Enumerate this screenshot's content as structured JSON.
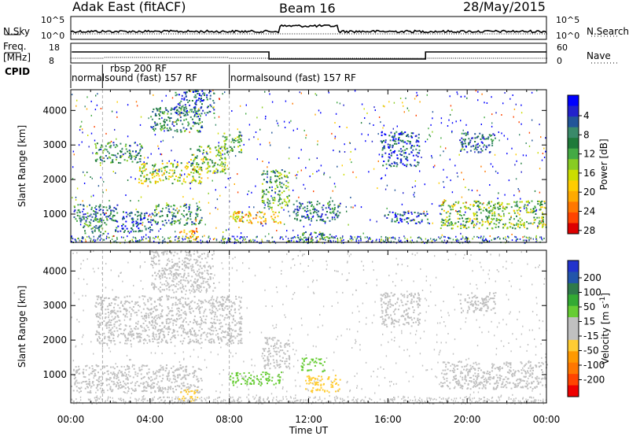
{
  "header": {
    "title": "Adak East (fitACF)",
    "beam": "Beam 16",
    "date": "28/May/2015"
  },
  "panels": {
    "nsky_label": "N.Sky",
    "nsearch_label": "N.Search",
    "freq_label": "Freq.",
    "freq_unit": "[MHz]",
    "nave_label": "Nave",
    "cpid_label": "CPID",
    "nsky_ticks": [
      "10^5",
      "10^0"
    ],
    "nsearch_ticks": [
      "10^5",
      "10^0"
    ],
    "freq_ticks": [
      "18",
      "8"
    ],
    "nave_ticks": [
      "60",
      "0"
    ]
  },
  "cpid_segments": [
    {
      "text": "normalsound (fast) 157 RF",
      "start_hour": 0.0,
      "end_hour": 8.0
    },
    {
      "text": "rbsp 200 RF",
      "start_hour": 1.6,
      "end_hour": 8.0
    },
    {
      "text": "normalsound (fast) 157 RF",
      "start_hour": 8.0,
      "end_hour": 24.0
    }
  ],
  "chart_data": [
    {
      "type": "heatmap",
      "title": "",
      "xlabel": "Time UT",
      "ylabel": "Slant Range [km]",
      "xlim": [
        0,
        24
      ],
      "ylim": [
        180,
        4600
      ],
      "x_ticks": [
        "00:00",
        "04:00",
        "08:00",
        "12:00",
        "16:00",
        "20:00",
        "00:00"
      ],
      "y_ticks": [
        1000,
        2000,
        3000,
        4000
      ],
      "colorbar": {
        "label": "Power [dB]",
        "ticks": [
          4,
          8,
          12,
          16,
          20,
          24,
          28
        ],
        "colors": [
          "#0000ff",
          "#2222cc",
          "#225599",
          "#3a8a6a",
          "#1f7a3a",
          "#44aa44",
          "#88cc22",
          "#ccdd00",
          "#ffcc00",
          "#ffaa00",
          "#ff7700",
          "#ff4400",
          "#dd0000"
        ]
      },
      "regions": [
        {
          "t0": 0.1,
          "t1": 2.4,
          "r0": 800,
          "r1": 1300,
          "value": 8
        },
        {
          "t0": 0.6,
          "t1": 1.8,
          "r0": 400,
          "r1": 900,
          "value": 10
        },
        {
          "t0": 2.2,
          "t1": 4.2,
          "r0": 500,
          "r1": 1100,
          "value": 6
        },
        {
          "t0": 4.2,
          "t1": 6.6,
          "r0": 700,
          "r1": 1300,
          "value": 10
        },
        {
          "t0": 5.4,
          "t1": 6.4,
          "r0": 250,
          "r1": 600,
          "value": 22
        },
        {
          "t0": 1.2,
          "t1": 3.6,
          "r0": 2500,
          "r1": 3100,
          "value": 10
        },
        {
          "t0": 3.4,
          "t1": 6.6,
          "r0": 1900,
          "r1": 2500,
          "value": 16
        },
        {
          "t0": 6.0,
          "t1": 7.8,
          "r0": 2200,
          "r1": 3000,
          "value": 14
        },
        {
          "t0": 7.6,
          "t1": 8.6,
          "r0": 2800,
          "r1": 3400,
          "value": 12
        },
        {
          "t0": 4.0,
          "t1": 6.6,
          "r0": 3400,
          "r1": 4100,
          "value": 10
        },
        {
          "t0": 5.2,
          "t1": 7.2,
          "r0": 3900,
          "r1": 4600,
          "value": 6
        },
        {
          "t0": 8.0,
          "t1": 10.6,
          "r0": 750,
          "r1": 1100,
          "value": 20
        },
        {
          "t0": 9.6,
          "t1": 11.0,
          "r0": 1200,
          "r1": 2300,
          "value": 12
        },
        {
          "t0": 11.2,
          "t1": 13.6,
          "r0": 800,
          "r1": 1400,
          "value": 8
        },
        {
          "t0": 11.6,
          "t1": 13.2,
          "r0": 200,
          "r1": 500,
          "value": 10
        },
        {
          "t0": 15.6,
          "t1": 17.6,
          "r0": 2400,
          "r1": 3400,
          "value": 6
        },
        {
          "t0": 15.8,
          "t1": 18.0,
          "r0": 750,
          "r1": 1100,
          "value": 6
        },
        {
          "t0": 18.6,
          "t1": 24.0,
          "r0": 600,
          "r1": 1400,
          "value": 14
        },
        {
          "t0": 19.6,
          "t1": 21.4,
          "r0": 2800,
          "r1": 3400,
          "value": 8
        }
      ]
    },
    {
      "type": "heatmap",
      "title": "",
      "xlabel": "Time UT",
      "ylabel": "Slant Range [km]",
      "xlim": [
        0,
        24
      ],
      "ylim": [
        180,
        4600
      ],
      "x_ticks": [
        "00:00",
        "04:00",
        "08:00",
        "12:00",
        "16:00",
        "20:00",
        "00:00"
      ],
      "y_ticks": [
        1000,
        2000,
        3000,
        4000
      ],
      "colorbar": {
        "label": "Velocity [m s^-1]",
        "ticks": [
          200,
          100,
          50,
          15,
          -15,
          -50,
          -100,
          -200
        ],
        "colors": [
          "#2233cc",
          "#2255aa",
          "#2f7a4a",
          "#33aa33",
          "#66cc33",
          "#c0c0c0",
          "#c0c0c0",
          "#ffcc33",
          "#ff9900",
          "#ff7700",
          "#ff4400",
          "#ee0000"
        ]
      },
      "regions": [
        {
          "t0": 0.1,
          "t1": 6.6,
          "r0": 500,
          "r1": 1300,
          "value": 0
        },
        {
          "t0": 5.4,
          "t1": 6.4,
          "r0": 250,
          "r1": 600,
          "value": -60
        },
        {
          "t0": 1.2,
          "t1": 8.6,
          "r0": 1900,
          "r1": 3300,
          "value": 0
        },
        {
          "t0": 4.0,
          "t1": 7.2,
          "r0": 3400,
          "r1": 4600,
          "value": -20
        },
        {
          "t0": 8.0,
          "t1": 10.6,
          "r0": 700,
          "r1": 1100,
          "value": 40
        },
        {
          "t0": 9.6,
          "t1": 11.0,
          "r0": 1200,
          "r1": 2100,
          "value": 5
        },
        {
          "t0": 11.6,
          "t1": 12.8,
          "r0": 1100,
          "r1": 1500,
          "value": 40
        },
        {
          "t0": 11.8,
          "t1": 13.6,
          "r0": 500,
          "r1": 1000,
          "value": -60
        },
        {
          "t0": 15.6,
          "t1": 17.6,
          "r0": 2400,
          "r1": 3400,
          "value": 5
        },
        {
          "t0": 18.6,
          "t1": 24.0,
          "r0": 600,
          "r1": 1400,
          "value": 0
        },
        {
          "t0": 19.6,
          "t1": 21.4,
          "r0": 2800,
          "r1": 3400,
          "value": -20
        }
      ]
    }
  ]
}
